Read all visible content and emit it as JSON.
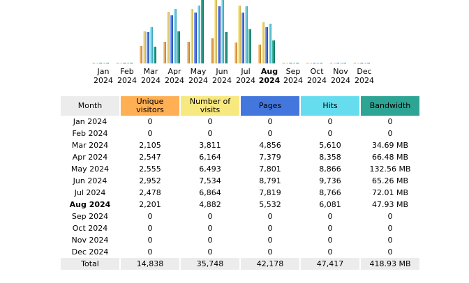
{
  "colors": {
    "unique_visitors": "#ffb055",
    "number_of_visits": "#f8e880",
    "pages": "#4477dd",
    "hits": "#66ddee",
    "bandwidth": "#2ea495",
    "header_bg": "#ececec"
  },
  "headers": {
    "month": "Month",
    "unique_visitors": "Unique visitors",
    "number_of_visits": "Number of visits",
    "pages": "Pages",
    "hits": "Hits",
    "bandwidth": "Bandwidth"
  },
  "rows": [
    {
      "month": "Jan 2024",
      "uv": "0",
      "nv": "0",
      "pg": "0",
      "hi": "0",
      "bw": "0"
    },
    {
      "month": "Feb 2024",
      "uv": "0",
      "nv": "0",
      "pg": "0",
      "hi": "0",
      "bw": "0"
    },
    {
      "month": "Mar 2024",
      "uv": "2,105",
      "nv": "3,811",
      "pg": "4,856",
      "hi": "5,610",
      "bw": "34.69 MB"
    },
    {
      "month": "Apr 2024",
      "uv": "2,547",
      "nv": "6,164",
      "pg": "7,379",
      "hi": "8,358",
      "bw": "66.48 MB"
    },
    {
      "month": "May 2024",
      "uv": "2,555",
      "nv": "6,493",
      "pg": "7,801",
      "hi": "8,866",
      "bw": "132.56 MB"
    },
    {
      "month": "Jun 2024",
      "uv": "2,952",
      "nv": "7,534",
      "pg": "8,791",
      "hi": "9,736",
      "bw": "65.26 MB"
    },
    {
      "month": "Jul 2024",
      "uv": "2,478",
      "nv": "6,864",
      "pg": "7,819",
      "hi": "8,766",
      "bw": "72.01 MB"
    },
    {
      "month": "Aug 2024",
      "uv": "2,201",
      "nv": "4,882",
      "pg": "5,532",
      "hi": "6,081",
      "bw": "47.93 MB"
    },
    {
      "month": "Sep 2024",
      "uv": "0",
      "nv": "0",
      "pg": "0",
      "hi": "0",
      "bw": "0"
    },
    {
      "month": "Oct 2024",
      "uv": "0",
      "nv": "0",
      "pg": "0",
      "hi": "0",
      "bw": "0"
    },
    {
      "month": "Nov 2024",
      "uv": "0",
      "nv": "0",
      "pg": "0",
      "hi": "0",
      "bw": "0"
    },
    {
      "month": "Dec 2024",
      "uv": "0",
      "nv": "0",
      "pg": "0",
      "hi": "0",
      "bw": "0"
    }
  ],
  "total": {
    "label": "Total",
    "uv": "14,838",
    "nv": "35,748",
    "pg": "42,178",
    "hi": "47,417",
    "bw": "418.93 MB"
  },
  "current_month_index": 7,
  "chart_data": {
    "type": "bar",
    "categories": [
      "Jan 2024",
      "Feb 2024",
      "Mar 2024",
      "Apr 2024",
      "May 2024",
      "Jun 2024",
      "Jul 2024",
      "Aug 2024",
      "Sep 2024",
      "Oct 2024",
      "Nov 2024",
      "Dec 2024"
    ],
    "category_labels": [
      [
        "Jan",
        "2024"
      ],
      [
        "Feb",
        "2024"
      ],
      [
        "Mar",
        "2024"
      ],
      [
        "Apr",
        "2024"
      ],
      [
        "May",
        "2024"
      ],
      [
        "Jun",
        "2024"
      ],
      [
        "Jul",
        "2024"
      ],
      [
        "Aug",
        "2024"
      ],
      [
        "Sep",
        "2024"
      ],
      [
        "Oct",
        "2024"
      ],
      [
        "Nov",
        "2024"
      ],
      [
        "Dec",
        "2024"
      ]
    ],
    "series": [
      {
        "key": "uv",
        "values": [
          0,
          0,
          2105,
          2547,
          2555,
          2952,
          2478,
          2201,
          0,
          0,
          0,
          0
        ]
      },
      {
        "key": "nv",
        "values": [
          0,
          0,
          3811,
          6164,
          6493,
          7534,
          6864,
          4882,
          0,
          0,
          0,
          0
        ]
      },
      {
        "key": "pg",
        "values": [
          0,
          0,
          4856,
          7379,
          7801,
          8791,
          7819,
          5532,
          0,
          0,
          0,
          0
        ]
      },
      {
        "key": "hi",
        "values": [
          0,
          0,
          5610,
          8358,
          8866,
          9736,
          8766,
          6081,
          0,
          0,
          0,
          0
        ]
      },
      {
        "key": "bw",
        "values": [
          0,
          0,
          34.69,
          66.48,
          132.56,
          65.26,
          72.01,
          47.93,
          0,
          0,
          0,
          0
        ]
      }
    ],
    "highlight_index": 7
  }
}
